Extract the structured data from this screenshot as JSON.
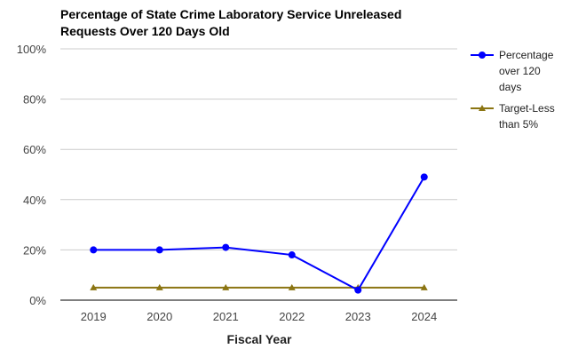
{
  "chart_data": {
    "type": "line",
    "title_lines": [
      "Percentage of State Crime Laboratory Service Unreleased",
      "Requests Over 120 Days Old"
    ],
    "xlabel": "Fiscal Year",
    "ylabel": "",
    "categories": [
      "2019",
      "2020",
      "2021",
      "2022",
      "2023",
      "2024"
    ],
    "ylim": [
      0,
      100
    ],
    "yticks": [
      "0%",
      "20%",
      "40%",
      "60%",
      "80%",
      "100%"
    ],
    "grid": true,
    "legend_position": "right",
    "series": [
      {
        "name_lines": [
          "Percentage",
          "over 120",
          "days"
        ],
        "values": [
          20,
          20,
          21,
          18,
          4,
          49
        ],
        "color": "#0000ff",
        "marker": "circle"
      },
      {
        "name_lines": [
          "Target-Less",
          "than 5%"
        ],
        "values": [
          5,
          5,
          5,
          5,
          5,
          5
        ],
        "color": "#8b7512",
        "marker": "triangle"
      }
    ]
  }
}
